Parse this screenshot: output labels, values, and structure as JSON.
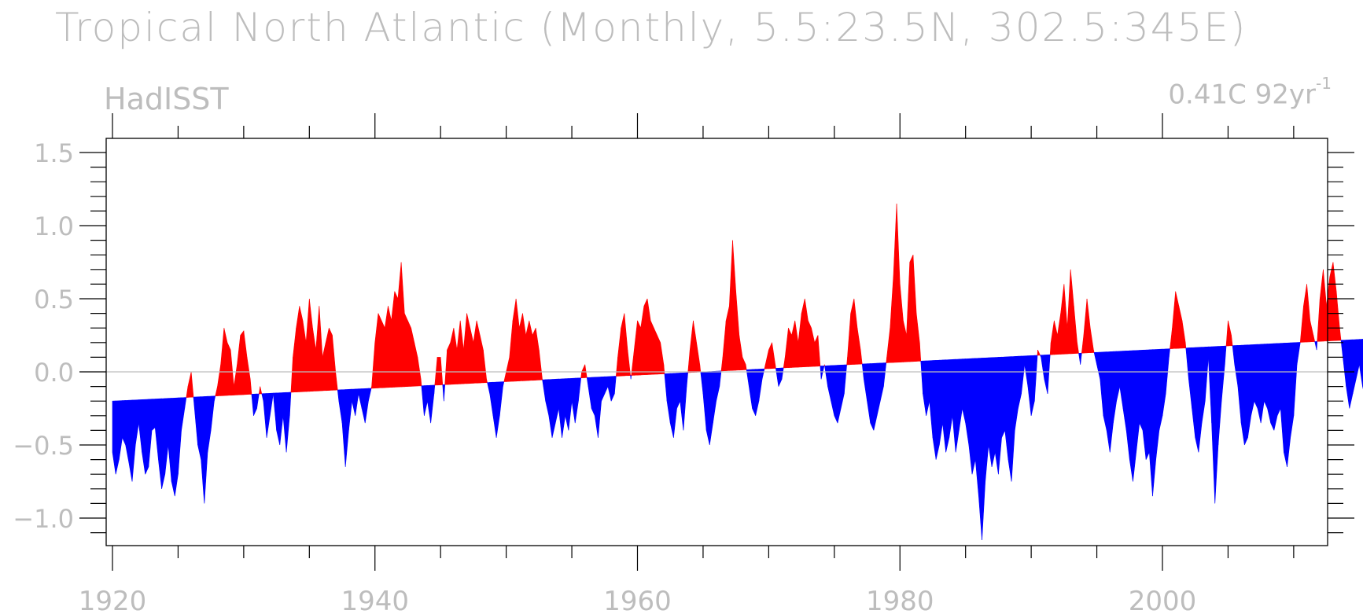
{
  "chart_data": {
    "type": "area",
    "title": "Tropical North Atlantic (Monthly, 5.5:23.5N, 302.5:345E)",
    "subtitle_left": "HadISST",
    "trend_label": "0.41C 92yr",
    "trend_label_exponent": "-1",
    "x_range": [
      1920,
      2013
    ],
    "ylim": [
      -1.2,
      1.6
    ],
    "x_ticks": [
      1920,
      1940,
      1960,
      1980,
      2000
    ],
    "x_tick_labels": [
      "1920",
      "1940",
      "1960",
      "1980",
      "2000"
    ],
    "y_ticks": [
      -1.0,
      -0.5,
      0.0,
      0.5,
      1.0,
      1.5
    ],
    "y_tick_labels": [
      "−1.0",
      "−0.5",
      "0.0",
      "0.5",
      "1.0",
      "1.5"
    ],
    "zero_line": true,
    "trend": {
      "start": [
        1920,
        -0.2
      ],
      "end": [
        2012.3,
        0.21
      ]
    },
    "colors": {
      "above_trend": "#ff0000",
      "below_trend": "#0000ff",
      "frame": "#000000",
      "text": "#bdbdbd",
      "zero_line": "#bdbdbd"
    },
    "series": [
      {
        "x_start": 1920.0,
        "x_step": 0.25,
        "values": [
          -0.55,
          -0.7,
          -0.6,
          -0.45,
          -0.5,
          -0.62,
          -0.75,
          -0.5,
          -0.35,
          -0.55,
          -0.7,
          -0.65,
          -0.4,
          -0.38,
          -0.6,
          -0.8,
          -0.7,
          -0.5,
          -0.75,
          -0.85,
          -0.7,
          -0.4,
          -0.25,
          -0.1,
          0.0,
          -0.25,
          -0.5,
          -0.6,
          -0.9,
          -0.55,
          -0.4,
          -0.2,
          -0.1,
          0.05,
          0.3,
          0.2,
          0.15,
          -0.1,
          0.05,
          0.25,
          0.28,
          0.1,
          -0.05,
          -0.3,
          -0.25,
          -0.1,
          -0.2,
          -0.45,
          -0.3,
          -0.15,
          -0.4,
          -0.5,
          -0.3,
          -0.55,
          -0.3,
          0.1,
          0.3,
          0.45,
          0.35,
          0.2,
          0.5,
          0.3,
          0.15,
          0.45,
          0.1,
          0.2,
          0.3,
          0.25,
          0.0,
          -0.2,
          -0.35,
          -0.65,
          -0.4,
          -0.2,
          -0.3,
          -0.15,
          -0.25,
          -0.35,
          -0.2,
          -0.1,
          0.2,
          0.4,
          0.35,
          0.3,
          0.45,
          0.35,
          0.55,
          0.5,
          0.75,
          0.4,
          0.35,
          0.3,
          0.2,
          0.1,
          -0.05,
          -0.3,
          -0.2,
          -0.35,
          -0.15,
          0.1,
          0.1,
          -0.2,
          0.15,
          0.2,
          0.3,
          0.15,
          0.35,
          0.15,
          0.4,
          0.3,
          0.2,
          0.35,
          0.25,
          0.15,
          -0.05,
          -0.15,
          -0.3,
          -0.45,
          -0.3,
          -0.1,
          0.0,
          0.1,
          0.35,
          0.5,
          0.3,
          0.4,
          0.25,
          0.35,
          0.25,
          0.3,
          0.15,
          -0.05,
          -0.2,
          -0.3,
          -0.45,
          -0.35,
          -0.25,
          -0.45,
          -0.3,
          -0.4,
          -0.2,
          -0.35,
          -0.2,
          0.0,
          0.05,
          -0.1,
          -0.25,
          -0.3,
          -0.45,
          -0.2,
          -0.15,
          -0.1,
          -0.2,
          -0.15,
          0.1,
          0.3,
          0.4,
          0.15,
          -0.05,
          0.15,
          0.35,
          0.3,
          0.45,
          0.5,
          0.35,
          0.3,
          0.25,
          0.2,
          0.05,
          -0.2,
          -0.35,
          -0.45,
          -0.25,
          -0.2,
          -0.4,
          -0.1,
          0.15,
          0.35,
          0.2,
          0.05,
          -0.15,
          -0.4,
          -0.5,
          -0.35,
          -0.2,
          -0.1,
          0.1,
          0.35,
          0.45,
          0.9,
          0.55,
          0.25,
          0.1,
          0.05,
          -0.1,
          -0.25,
          -0.3,
          -0.2,
          -0.05,
          0.05,
          0.15,
          0.2,
          0.05,
          -0.1,
          -0.05,
          0.1,
          0.3,
          0.25,
          0.35,
          0.2,
          0.4,
          0.5,
          0.35,
          0.3,
          0.2,
          0.25,
          -0.05,
          0.05,
          -0.1,
          -0.2,
          -0.3,
          -0.35,
          -0.25,
          -0.15,
          0.1,
          0.4,
          0.5,
          0.3,
          0.15,
          -0.05,
          -0.2,
          -0.35,
          -0.4,
          -0.3,
          -0.2,
          -0.1,
          0.1,
          0.3,
          0.65,
          1.15,
          0.6,
          0.35,
          0.25,
          0.75,
          0.8,
          0.4,
          0.2,
          -0.15,
          -0.3,
          -0.2,
          -0.45,
          -0.6,
          -0.5,
          -0.35,
          -0.55,
          -0.45,
          -0.3,
          -0.55,
          -0.4,
          -0.25,
          -0.35,
          -0.5,
          -0.7,
          -0.6,
          -0.85,
          -1.15,
          -0.75,
          -0.5,
          -0.65,
          -0.55,
          -0.7,
          -0.45,
          -0.4,
          -0.6,
          -0.75,
          -0.4,
          -0.25,
          -0.15,
          0.05,
          -0.1,
          -0.3,
          -0.2,
          0.15,
          0.1,
          -0.05,
          -0.15,
          0.2,
          0.35,
          0.25,
          0.4,
          0.6,
          0.3,
          0.7,
          0.45,
          0.2,
          0.05,
          0.25,
          0.5,
          0.3,
          0.15,
          0.05,
          -0.05,
          -0.3,
          -0.4,
          -0.55,
          -0.35,
          -0.2,
          -0.1,
          -0.25,
          -0.4,
          -0.6,
          -0.75,
          -0.55,
          -0.35,
          -0.4,
          -0.6,
          -0.55,
          -0.85,
          -0.6,
          -0.4,
          -0.3,
          -0.15,
          0.1,
          0.3,
          0.55,
          0.45,
          0.35,
          0.2,
          -0.05,
          -0.25,
          -0.45,
          -0.55,
          -0.35,
          -0.2,
          0.1,
          -0.35,
          -0.9,
          -0.5,
          -0.2,
          0.05,
          0.35,
          0.25,
          0.05,
          -0.1,
          -0.35,
          -0.5,
          -0.45,
          -0.3,
          -0.2,
          -0.25,
          -0.35,
          -0.2,
          -0.25,
          -0.35,
          -0.4,
          -0.3,
          -0.25,
          -0.55,
          -0.65,
          -0.45,
          -0.3,
          0.05,
          0.2,
          0.45,
          0.6,
          0.35,
          0.25,
          0.15,
          0.5,
          0.7,
          0.45,
          0.65,
          0.75,
          0.55,
          0.3,
          0.1,
          -0.1,
          -0.25,
          -0.15,
          -0.05,
          0.05,
          -0.1,
          -0.2,
          -0.15,
          -0.25,
          0.15,
          0.35,
          0.75,
          0.55,
          0.3,
          0.05,
          -0.1,
          0.0,
          0.25,
          0.1,
          -0.05,
          0.2,
          0.5,
          0.7,
          0.45,
          0.55,
          0.4,
          0.65,
          0.55,
          0.4,
          0.75,
          1.0,
          0.6,
          0.45,
          0.3,
          0.5,
          0.7,
          0.55,
          0.3,
          0.1,
          -0.05,
          -0.15,
          -0.2,
          0.1,
          0.3,
          0.5,
          0.35,
          0.05,
          -0.3,
          -0.4,
          0.2,
          0.45,
          0.85,
          1.4,
          1.1,
          0.6,
          0.5,
          0.95,
          0.5,
          0.3,
          0.4,
          0.5,
          0.25,
          0.15
        ]
      }
    ]
  }
}
